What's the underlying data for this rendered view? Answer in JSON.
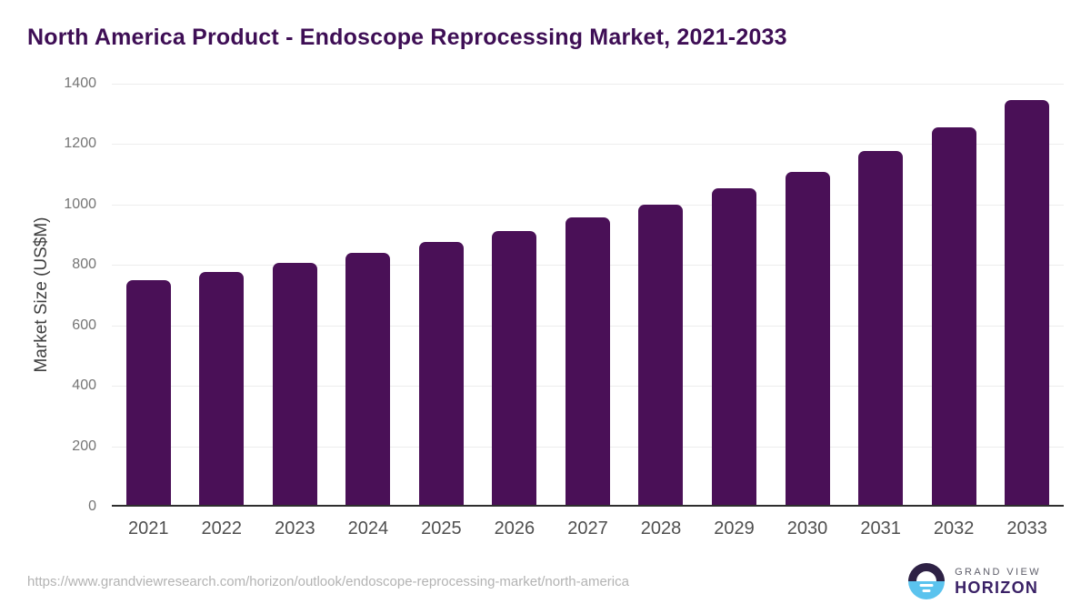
{
  "chart_data": {
    "type": "bar",
    "title": "North America Product - Endoscope Reprocessing Market, 2021-2033",
    "categories": [
      "2021",
      "2022",
      "2023",
      "2024",
      "2025",
      "2026",
      "2027",
      "2028",
      "2029",
      "2030",
      "2031",
      "2032",
      "2033"
    ],
    "values": [
      745,
      772,
      802,
      834,
      870,
      906,
      950,
      995,
      1047,
      1101,
      1171,
      1249,
      1340
    ],
    "xlabel": "",
    "ylabel": "Market Size (US$M)",
    "ylim": [
      0,
      1400
    ],
    "yticks": [
      0,
      200,
      400,
      600,
      800,
      1000,
      1200,
      1400
    ],
    "grid": true,
    "legend": false,
    "bar_color": "#4a1057"
  },
  "colors": {
    "title": "#3e0e55",
    "bar": "#4a1057",
    "axis_line": "#2e2e2e",
    "gridline": "#ededed",
    "logo_icon_top": "#2e2145",
    "logo_icon_bottom": "#5bc3ee",
    "logo_wordmark": "#3a2166"
  },
  "footer": {
    "url": "https://www.grandviewresearch.com/horizon/outlook/endoscope-reprocessing-market/north-america",
    "logo_top": "GRAND VIEW",
    "logo_bottom": "HORIZON"
  }
}
